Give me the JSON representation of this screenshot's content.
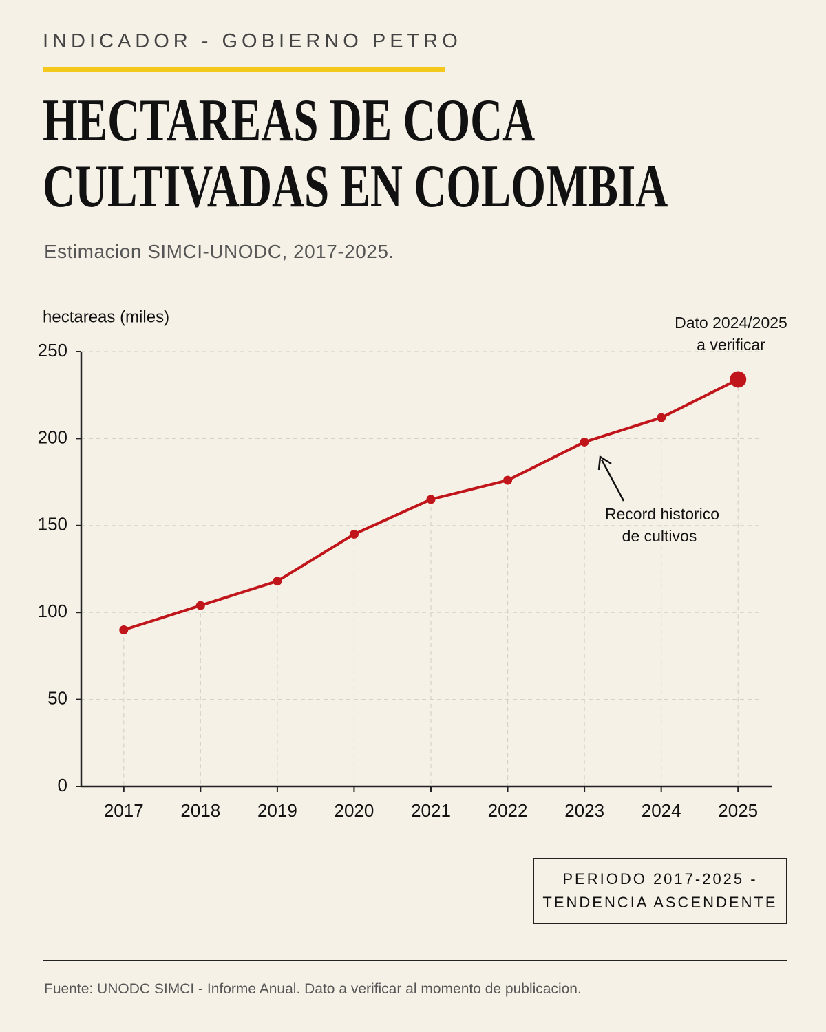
{
  "kicker": "INDICADOR - GOBIERNO PETRO",
  "chart_data": {
    "type": "line",
    "title": "HECTAREAS DE COCA CULTIVADAS EN COLOMBIA",
    "subtitle": "Estimacion SIMCI-UNODC, 2017-2025.",
    "y_label": "hectareas (miles)",
    "categories": [
      "2017",
      "2018",
      "2019",
      "2020",
      "2021",
      "2022",
      "2023",
      "2024",
      "2025"
    ],
    "series": [
      {
        "name": "hectareas",
        "color": "#c0161b",
        "values": [
          90,
          104,
          118,
          145,
          165,
          176,
          198,
          212,
          234
        ]
      }
    ],
    "ylim": [
      0,
      250
    ],
    "yticks": [
      0,
      50,
      100,
      150,
      200,
      250
    ],
    "grid": true,
    "annotations": [
      {
        "text": [
          "Dato 2024/2025",
          "a verificar"
        ]
      },
      {
        "text": [
          "Record historico",
          "de cultivos"
        ]
      }
    ]
  },
  "badge": [
    "PERIODO 2017-2025 -",
    "TENDENCIA ASCENDENTE"
  ],
  "source": "Fuente: UNODC SIMCI - Informe Anual. Dato a verificar al momento de publicacion."
}
